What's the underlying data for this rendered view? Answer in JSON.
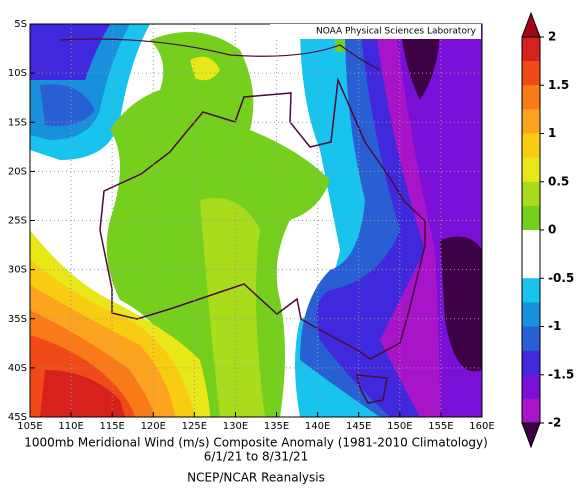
{
  "map": {
    "title": "1000mb Meridional Wind (m/s) Composite Anomaly (1981-2010 Climatology)",
    "dates": "6/1/21   to 8/31/21",
    "source": "NCEP/NCAR Reanalysis",
    "credit": "NOAA Physical Sciences Laboratory",
    "lat_labels": [
      "5S",
      "10S",
      "15S",
      "20S",
      "25S",
      "30S",
      "35S",
      "40S",
      "45S"
    ],
    "lon_labels": [
      "105E",
      "110E",
      "115E",
      "120E",
      "125E",
      "130E",
      "135E",
      "140E",
      "145E",
      "150E",
      "155E",
      "160E"
    ],
    "colorbar": {
      "ticks": [
        2,
        1.5,
        1,
        0.5,
        0,
        -0.5,
        -1,
        -1.5,
        -2
      ],
      "range": [
        -2,
        2
      ],
      "colors": [
        "#d8201c",
        "#f04a18",
        "#f87a18",
        "#fca420",
        "#f8cc10",
        "#e8e818",
        "#a8dc1c",
        "#74d01c",
        "#ffffff",
        "#ffffff",
        "#18c4ee",
        "#1890dc",
        "#2860d4",
        "#4028dc",
        "#7a10d8",
        "#a814c8"
      ],
      "over_color": "#a00818",
      "under_color": "#3c0044"
    }
  }
}
